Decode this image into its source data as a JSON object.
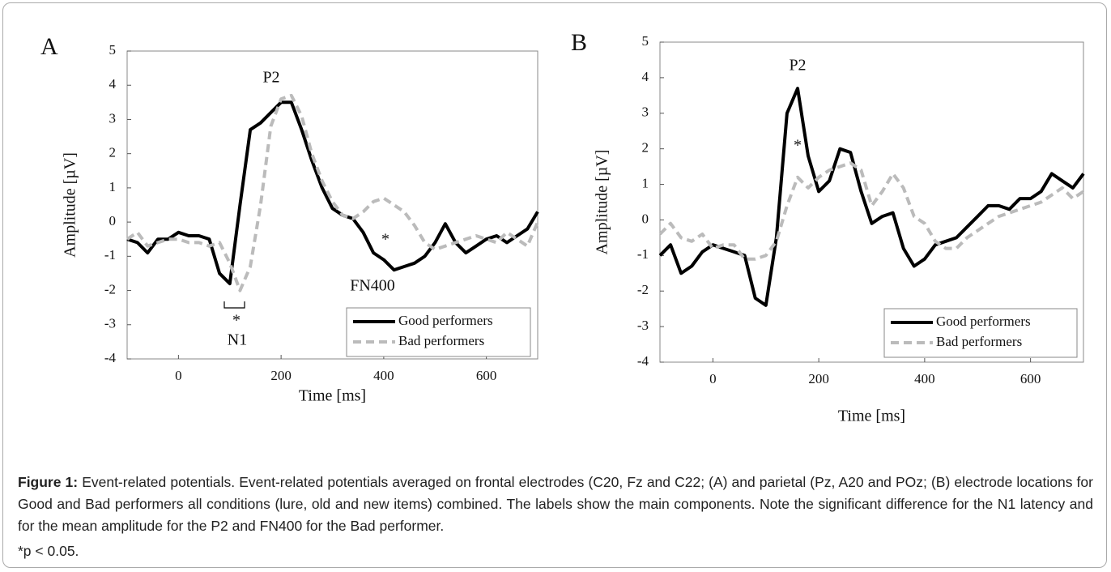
{
  "chart_data": [
    {
      "type": "line",
      "label": "A",
      "xlabel": "Time [ms]",
      "ylabel": "Amplitude [µV]",
      "x": [
        -100,
        -80,
        -60,
        -40,
        -20,
        0,
        20,
        40,
        60,
        80,
        100,
        120,
        140,
        160,
        180,
        200,
        220,
        240,
        260,
        280,
        300,
        320,
        340,
        360,
        380,
        400,
        420,
        440,
        460,
        480,
        500,
        520,
        540,
        560,
        580,
        600,
        620,
        640,
        660,
        680,
        700
      ],
      "series": [
        {
          "name": "Good performers",
          "color": "#000000",
          "dashed": false,
          "values": [
            -0.5,
            -0.6,
            -0.9,
            -0.5,
            -0.5,
            -0.3,
            -0.4,
            -0.4,
            -0.5,
            -1.5,
            -1.8,
            0.5,
            2.7,
            2.9,
            3.2,
            3.5,
            3.5,
            2.7,
            1.8,
            1.0,
            0.4,
            0.2,
            0.1,
            -0.3,
            -0.9,
            -1.1,
            -1.4,
            -1.3,
            -1.2,
            -1.0,
            -0.6,
            -0.05,
            -0.6,
            -0.9,
            -0.7,
            -0.5,
            -0.4,
            -0.6,
            -0.4,
            -0.2,
            0.3
          ]
        },
        {
          "name": "Bad performers",
          "color": "#bbbbbb",
          "dashed": true,
          "values": [
            -0.5,
            -0.3,
            -0.7,
            -0.6,
            -0.5,
            -0.5,
            -0.6,
            -0.6,
            -0.7,
            -0.6,
            -1.2,
            -2.0,
            -1.3,
            0.5,
            2.8,
            3.6,
            3.7,
            3.1,
            2.0,
            1.2,
            0.6,
            0.2,
            0.1,
            0.3,
            0.6,
            0.7,
            0.5,
            0.3,
            -0.1,
            -0.6,
            -0.8,
            -0.7,
            -0.6,
            -0.5,
            -0.4,
            -0.5,
            -0.6,
            -0.3,
            -0.5,
            -0.7,
            0.0
          ]
        }
      ],
      "xlim": [
        -100,
        700
      ],
      "xticks": [
        0,
        200,
        400,
        600
      ],
      "ylim": [
        -4,
        5
      ],
      "yticks": [
        -4,
        -3,
        -2,
        -1,
        0,
        1,
        2,
        3,
        4,
        5
      ],
      "legend": "lower right",
      "annotations": [
        "P2",
        "*",
        "N1",
        "FN400",
        "*"
      ]
    },
    {
      "type": "line",
      "label": "B",
      "xlabel": "Time [ms]",
      "ylabel": "Amplitude [µV]",
      "x": [
        -100,
        -80,
        -60,
        -40,
        -20,
        0,
        20,
        40,
        60,
        80,
        100,
        120,
        140,
        160,
        180,
        200,
        220,
        240,
        260,
        280,
        300,
        320,
        340,
        360,
        380,
        400,
        420,
        440,
        460,
        480,
        500,
        520,
        540,
        560,
        580,
        600,
        620,
        640,
        660,
        680,
        700
      ],
      "series": [
        {
          "name": "Good performers",
          "color": "#000000",
          "dashed": false,
          "values": [
            -1.0,
            -0.7,
            -1.5,
            -1.3,
            -0.9,
            -0.7,
            -0.8,
            -0.9,
            -1.0,
            -2.2,
            -2.4,
            -0.5,
            3.0,
            3.7,
            1.8,
            0.8,
            1.1,
            2.0,
            1.9,
            0.8,
            -0.1,
            0.1,
            0.2,
            -0.8,
            -1.3,
            -1.1,
            -0.7,
            -0.6,
            -0.5,
            -0.2,
            0.1,
            0.4,
            0.4,
            0.3,
            0.6,
            0.6,
            0.8,
            1.3,
            1.1,
            0.9,
            1.3
          ]
        },
        {
          "name": "Bad performers",
          "color": "#bbbbbb",
          "dashed": true,
          "values": [
            -0.4,
            -0.1,
            -0.5,
            -0.6,
            -0.4,
            -0.8,
            -0.7,
            -0.7,
            -1.1,
            -1.1,
            -1.0,
            -0.6,
            0.4,
            1.2,
            0.9,
            1.2,
            1.4,
            1.5,
            1.6,
            1.4,
            0.4,
            0.8,
            1.3,
            0.9,
            0.1,
            -0.1,
            -0.6,
            -0.8,
            -0.8,
            -0.5,
            -0.3,
            -0.1,
            0.1,
            0.2,
            0.3,
            0.4,
            0.5,
            0.7,
            0.9,
            0.6,
            0.8
          ]
        }
      ],
      "xlim": [
        -100,
        700
      ],
      "xticks": [
        0,
        200,
        400,
        600
      ],
      "ylim": [
        -4,
        5
      ],
      "yticks": [
        -4,
        -3,
        -2,
        -1,
        0,
        1,
        2,
        3,
        4,
        5
      ],
      "legend": "lower right",
      "annotations": [
        "P2",
        "*"
      ]
    }
  ],
  "caption": {
    "label": "Figure 1:",
    "text": "Event-related potentials. Event-related potentials averaged on frontal electrodes (C20, Fz and C22; (A) and parietal (Pz, A20 and POz; (B) electrode locations for Good and Bad performers all conditions (lure, old and new items) combined. The labels show the main components. Note the significant difference for the N1 latency and for the mean amplitude for the P2 and FN400 for the Bad performer.",
    "note": "*p < 0.05."
  }
}
